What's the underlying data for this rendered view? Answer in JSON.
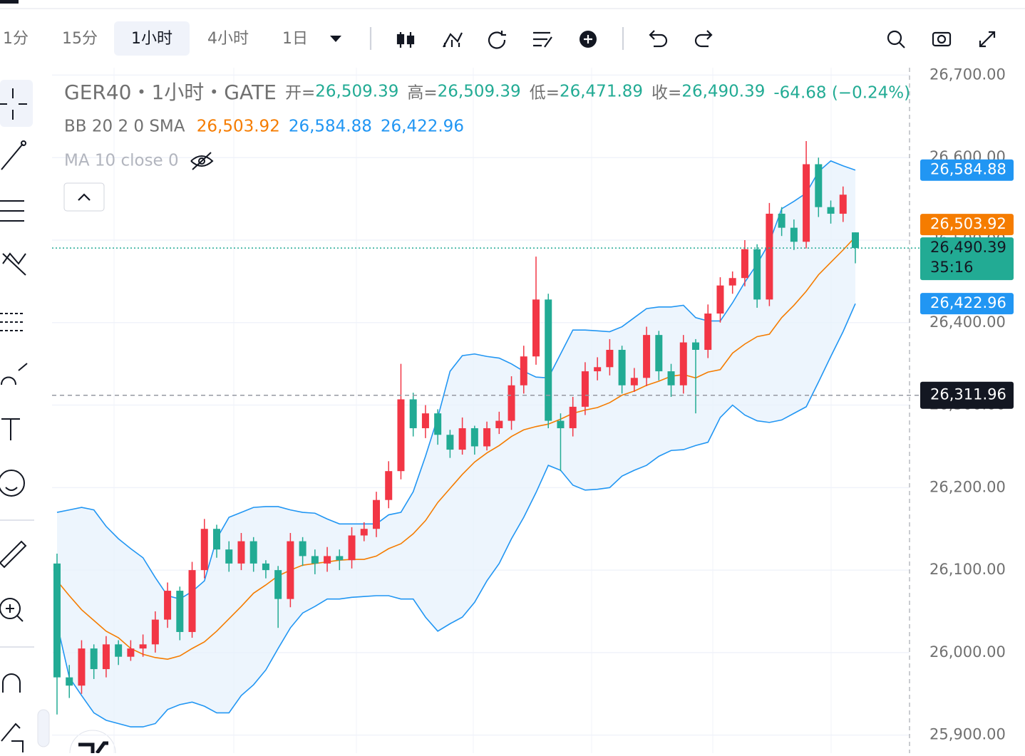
{
  "toolbar": {
    "intervals": [
      "1分",
      "15分",
      "1小时",
      "4小时",
      "1日"
    ],
    "active": 2
  },
  "chart_data": {
    "type": "candlestick",
    "title": "GER40・1小时・GATE",
    "ohlc_legend": [
      {
        "key": "开=",
        "value": "26,509.39"
      },
      {
        "key": "高=",
        "value": "26,509.39"
      },
      {
        "key": "低=",
        "value": "26,471.89"
      },
      {
        "key": "收=",
        "value": "26,490.39"
      }
    ],
    "change": "-64.68 (−0.24%)",
    "indicators": [
      {
        "name": "BB 20 2 0 SMA",
        "values": [
          "26,503.92",
          "26,584.88",
          "26,422.96"
        ],
        "colors": [
          "#f57c00",
          "#2196f3",
          "#2196f3"
        ]
      },
      {
        "name": "MA 10 close 0"
      }
    ],
    "up_color": "#f23645",
    "down_color": "#22ab94",
    "open": [
      26108,
      25970,
      25960,
      26005,
      25980,
      26010,
      25995,
      26005,
      26010,
      26040,
      26075,
      26025,
      26100,
      26150,
      26125,
      26108,
      26135,
      26108,
      26100,
      26065,
      26135,
      26117,
      26108,
      26117,
      26112,
      26142,
      26150,
      26185,
      26220,
      26307,
      26272,
      26290,
      26264,
      26246,
      26272,
      26250,
      26272,
      26281,
      26324,
      26359,
      26428,
      26281,
      26272,
      26298,
      26341,
      26346,
      26367,
      26324,
      26333,
      26385,
      26341,
      26324,
      26376,
      26367,
      26411,
      26445,
      26454,
      26489,
      26428,
      26532,
      26515,
      26498,
      26592,
      26540,
      26532,
      26509.39
    ],
    "high": [
      26120,
      25985,
      26015,
      26010,
      26020,
      26015,
      26015,
      26022,
      26050,
      26085,
      26080,
      26110,
      26162,
      26155,
      26135,
      26145,
      26140,
      26112,
      26105,
      26145,
      26140,
      26125,
      26128,
      26125,
      26152,
      26158,
      26195,
      26232,
      26350,
      26315,
      26300,
      26295,
      26270,
      26285,
      26275,
      26280,
      26292,
      26335,
      26372,
      26480,
      26435,
      26290,
      26310,
      26352,
      26358,
      26380,
      26372,
      26345,
      26395,
      26390,
      26350,
      26385,
      26380,
      26422,
      26455,
      26462,
      26500,
      26495,
      26545,
      26540,
      26525,
      26620,
      26600,
      26548,
      26565,
      26509.39
    ],
    "low": [
      25925,
      25945,
      25950,
      25968,
      25970,
      25985,
      25990,
      25995,
      26000,
      26030,
      26015,
      26018,
      26090,
      26115,
      26098,
      26100,
      26098,
      26090,
      26030,
      26055,
      26105,
      26095,
      26098,
      26100,
      26102,
      26135,
      26140,
      26175,
      26210,
      26262,
      26260,
      26252,
      26236,
      26240,
      26240,
      26245,
      26265,
      26270,
      26314,
      26349,
      26272,
      26220,
      26262,
      26288,
      26330,
      26336,
      26314,
      26316,
      26323,
      26330,
      26310,
      26314,
      26290,
      26357,
      26400,
      26435,
      26444,
      26418,
      26420,
      26505,
      26488,
      26490,
      26528,
      26520,
      26522,
      26471.89
    ],
    "close": [
      25970,
      25960,
      26005,
      25980,
      26010,
      25995,
      26005,
      26010,
      26040,
      26075,
      26025,
      26100,
      26150,
      26125,
      26108,
      26135,
      26108,
      26100,
      26065,
      26135,
      26117,
      26108,
      26117,
      26112,
      26142,
      26150,
      26185,
      26220,
      26307,
      26272,
      26290,
      26264,
      26246,
      26272,
      26250,
      26272,
      26281,
      26324,
      26359,
      26428,
      26281,
      26272,
      26298,
      26341,
      26346,
      26367,
      26324,
      26333,
      26385,
      26341,
      26324,
      26376,
      26367,
      26411,
      26445,
      26454,
      26489,
      26428,
      26532,
      26515,
      26498,
      26592,
      26540,
      26532,
      26555.07,
      26490.39
    ],
    "series": [
      {
        "color": "#2196f3",
        "values": [
          26170,
          26173,
          26176,
          26173,
          26153,
          26138,
          26126,
          26115,
          26091,
          26069,
          26065,
          26074,
          26087,
          26138,
          26164,
          26170,
          26176,
          26177,
          26177,
          26173,
          26170,
          26169,
          26162,
          26156,
          26156,
          26156,
          26156,
          26167,
          26170,
          26195,
          26238,
          26285,
          26341,
          26360,
          26362,
          26359,
          26357,
          26350,
          26341,
          26334,
          26333,
          26362,
          26391,
          26391,
          26390,
          26389,
          26395,
          26406,
          26417,
          26419,
          26419,
          26421,
          26406,
          26402,
          26402,
          26424,
          26449,
          26471,
          26497,
          26538,
          26547,
          26557,
          26583,
          26596,
          26590,
          26584.88
        ]
      },
      {
        "color": "#f57c00",
        "values": [
          26087,
          26069,
          26052,
          26039,
          26026,
          26018,
          26005,
          25998,
          25994,
          25992,
          25996,
          26005,
          26013,
          26026,
          26041,
          26056,
          26072,
          26082,
          26093,
          26100,
          26106,
          26108,
          26110,
          26112,
          26113,
          26113,
          26117,
          26126,
          26132,
          26144,
          26160,
          26182,
          26199,
          26216,
          26231,
          26242,
          26251,
          26262,
          26270,
          26274,
          26277,
          26283,
          26290,
          26294,
          26297,
          26303,
          26312,
          26317,
          26324,
          26329,
          26335,
          26337,
          26333,
          26340,
          26343,
          26363,
          26374,
          26383,
          26386,
          26406,
          26421,
          26438,
          26458,
          26473,
          26488,
          26503.92
        ]
      },
      {
        "color": "#2196f3",
        "values": [
          26035,
          25970,
          25948,
          25927,
          25918,
          25914,
          25910,
          25910,
          25914,
          25931,
          25937,
          25940,
          25935,
          25927,
          25927,
          25948,
          25961,
          25979,
          26005,
          26030,
          26048,
          26056,
          26065,
          26065,
          26067,
          26068,
          26069,
          26069,
          26065,
          26065,
          26043,
          26026,
          26035,
          26043,
          26061,
          26087,
          26108,
          26138,
          26164,
          26194,
          26227,
          26221,
          26203,
          26197,
          26198,
          26200,
          26214,
          26221,
          26227,
          26238,
          26245,
          26246,
          26251,
          26255,
          26285,
          26300,
          26288,
          26281,
          26279,
          26282,
          26290,
          26298,
          26328,
          26359,
          26389,
          26422.96
        ]
      }
    ],
    "band_fill": "#e6f1fc",
    "ylim": [
      25879,
      26709
    ],
    "yticks": [
      {
        "value": 25900,
        "label": "25,900.00"
      },
      {
        "value": 26000,
        "label": "26,000.00"
      },
      {
        "value": 26100,
        "label": "26,100.00"
      },
      {
        "value": 26200,
        "label": "26,200.00"
      },
      {
        "value": 26300,
        "label": "26,300.00"
      },
      {
        "value": 26400,
        "label": "26,400.00"
      },
      {
        "value": 26500,
        "label": "26,500.00"
      },
      {
        "value": 26600,
        "label": "26,600.00"
      },
      {
        "value": 26700,
        "label": "26,700.00"
      }
    ],
    "grid": true,
    "last_price": {
      "value": 26490.39,
      "label": "26,490.39",
      "countdown": "35:16",
      "color": "#22ab94"
    },
    "price_labels": [
      {
        "value": 26584.88,
        "label": "26,584.88",
        "color": "#2196f3"
      },
      {
        "value": 26503.92,
        "label": "26,503.92",
        "color": "#f57c00"
      },
      {
        "value": 26422.96,
        "label": "26,422.96",
        "color": "#2196f3"
      }
    ],
    "crosshair": {
      "value": 26311.96,
      "label": "26,311.96"
    }
  }
}
